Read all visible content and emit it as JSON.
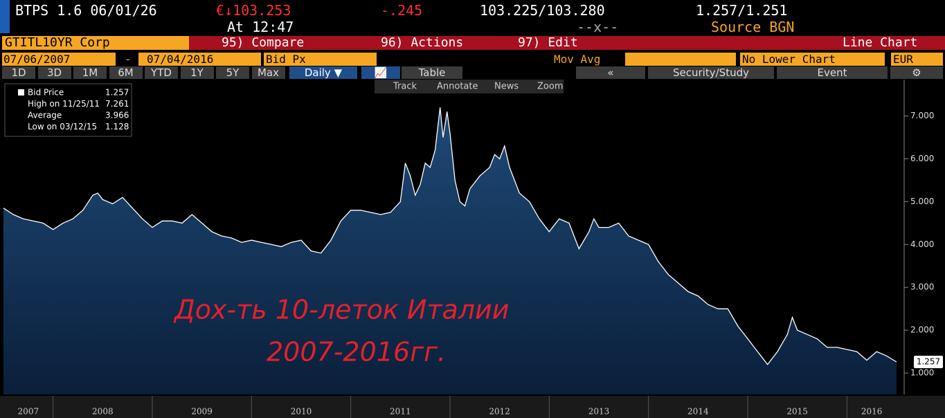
{
  "header": {
    "ticker": "BTPS 1.6 06/01/26",
    "price": "€↓103.253",
    "change": ".245",
    "change_sign": "-",
    "bid_ask": "103.225/103.280",
    "yield_pair": "1.257/1.251",
    "time": "At 12:47",
    "spread": "--x--",
    "source": "Source BGN"
  },
  "toolbar": {
    "security": "GTITL10YR Corp",
    "compare": "95) Compare",
    "actions": "96) Actions",
    "edit": "97) Edit",
    "chart_kind": "Line Chart"
  },
  "range": {
    "start": "07/06/2007",
    "dash": "-",
    "end": "07/04/2016",
    "field": "Bid Px",
    "study": "Mov Avg",
    "lower": "No Lower Chart",
    "currency": "EUR"
  },
  "periods": [
    "1D",
    "3D",
    "1M",
    "6M",
    "YTD",
    "1Y",
    "5Y",
    "Max"
  ],
  "frequency": "Daily ▼",
  "view": {
    "table": "Table",
    "collapse": "«",
    "security_study": "Security/Study",
    "event": "Event",
    "settings": "⚙"
  },
  "chart_tools": [
    "Track",
    "Annotate",
    "News",
    "Zoom"
  ],
  "legend": [
    {
      "label": "Bid Price",
      "value": "1.257"
    },
    {
      "label": "High on 11/25/11",
      "value": "7.261"
    },
    {
      "label": "Average",
      "value": "3.966"
    },
    {
      "label": "Low on 03/12/15",
      "value": "1.128"
    }
  ],
  "annotation": [
    "Дох-ть 10-леток Италии",
    "2007-2016гг."
  ],
  "chart": {
    "type": "area",
    "color": "#ffffff",
    "last_label": "1.257",
    "xlim": [
      2007.5,
      2016.5
    ],
    "xticks": [
      2008,
      2009,
      2010,
      2011,
      2012,
      2013,
      2014,
      2015,
      2016
    ],
    "x_labels": [
      "2007",
      "2008",
      "2009",
      "2010",
      "2011",
      "2012",
      "2013",
      "2014",
      "2015",
      "2016"
    ],
    "ylim": [
      0.5,
      7.85
    ],
    "yticks": [
      {
        "value": 1,
        "label": "1.000"
      },
      {
        "value": 2,
        "label": "2.000"
      },
      {
        "value": 3,
        "label": "3.000"
      },
      {
        "value": 4,
        "label": "4.000"
      },
      {
        "value": 5,
        "label": "5.000"
      },
      {
        "value": 6,
        "label": "6.000"
      },
      {
        "value": 7,
        "label": "7.000"
      }
    ],
    "x": [
      2007.5,
      2007.6,
      2007.7,
      2007.8,
      2007.9,
      2008.0,
      2008.1,
      2008.2,
      2008.3,
      2008.4,
      2008.45,
      2008.5,
      2008.6,
      2008.7,
      2008.8,
      2008.9,
      2009.0,
      2009.1,
      2009.2,
      2009.3,
      2009.4,
      2009.5,
      2009.6,
      2009.7,
      2009.8,
      2009.9,
      2010.0,
      2010.1,
      2010.2,
      2010.3,
      2010.4,
      2010.5,
      2010.6,
      2010.7,
      2010.8,
      2010.9,
      2011.0,
      2011.1,
      2011.2,
      2011.3,
      2011.4,
      2011.5,
      2011.55,
      2011.6,
      2011.65,
      2011.7,
      2011.75,
      2011.8,
      2011.85,
      2011.9,
      2011.93,
      2011.97,
      2012.0,
      2012.05,
      2012.1,
      2012.15,
      2012.2,
      2012.3,
      2012.4,
      2012.45,
      2012.5,
      2012.55,
      2012.6,
      2012.7,
      2012.8,
      2012.9,
      2013.0,
      2013.1,
      2013.2,
      2013.3,
      2013.4,
      2013.45,
      2013.5,
      2013.6,
      2013.7,
      2013.8,
      2013.9,
      2014.0,
      2014.1,
      2014.2,
      2014.3,
      2014.4,
      2014.5,
      2014.6,
      2014.7,
      2014.8,
      2014.9,
      2015.0,
      2015.1,
      2015.2,
      2015.3,
      2015.4,
      2015.45,
      2015.5,
      2015.6,
      2015.7,
      2015.8,
      2015.9,
      2016.0,
      2016.1,
      2016.2,
      2016.3,
      2016.4,
      2016.5
    ],
    "values": [
      4.85,
      4.7,
      4.6,
      4.55,
      4.5,
      4.35,
      4.5,
      4.6,
      4.8,
      5.15,
      5.2,
      5.05,
      4.95,
      5.1,
      4.85,
      4.6,
      4.4,
      4.55,
      4.55,
      4.5,
      4.7,
      4.5,
      4.3,
      4.2,
      4.15,
      4.05,
      4.1,
      4.05,
      4.0,
      3.95,
      4.05,
      4.1,
      3.85,
      3.8,
      4.1,
      4.55,
      4.8,
      4.8,
      4.75,
      4.7,
      4.75,
      5.0,
      5.9,
      5.6,
      5.15,
      5.4,
      5.9,
      5.8,
      6.2,
      7.2,
      6.5,
      7.1,
      6.6,
      5.5,
      5.0,
      4.9,
      5.3,
      5.6,
      5.8,
      6.1,
      6.0,
      6.3,
      5.8,
      5.2,
      5.0,
      4.6,
      4.3,
      4.6,
      4.5,
      3.9,
      4.3,
      4.6,
      4.4,
      4.4,
      4.5,
      4.2,
      4.1,
      4.0,
      3.6,
      3.3,
      3.1,
      2.9,
      2.8,
      2.6,
      2.5,
      2.5,
      2.1,
      1.8,
      1.5,
      1.2,
      1.5,
      1.9,
      2.3,
      2.0,
      1.9,
      1.8,
      1.6,
      1.6,
      1.55,
      1.5,
      1.3,
      1.5,
      1.4,
      1.26
    ]
  }
}
